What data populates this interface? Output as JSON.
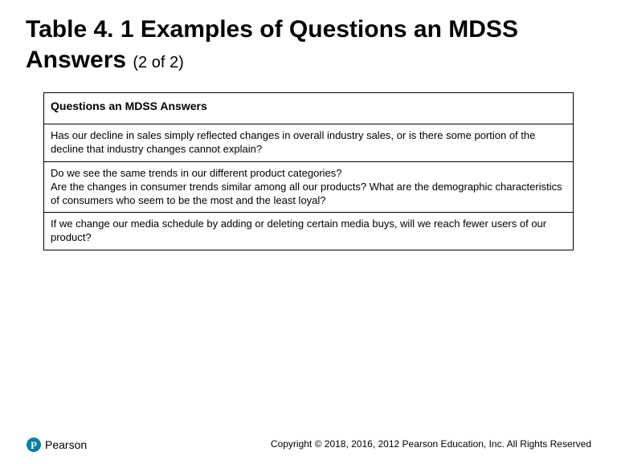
{
  "title_main": "Table 4. 1 Examples of Questions an MDSS Answers ",
  "title_sub": "(2 of 2)",
  "table": {
    "header": "Questions an MDSS Answers",
    "rows": [
      "Has our decline in sales simply reflected changes in overall industry sales, or is there some portion of the decline that industry changes cannot explain?",
      "Do we see the same trends in our different product categories?\nAre the changes in consumer trends similar among all our products? What are the demographic characteristics of consumers who seem to be the most and the least loyal?",
      "If we change our media schedule by adding or deleting certain media buys, will we reach fewer users of our product?"
    ]
  },
  "footer": "Copyright © 2018, 2016, 2012 Pearson Education, Inc. All Rights Reserved",
  "logo_text": "Pearson",
  "colors": {
    "text": "#000000",
    "background": "#ffffff",
    "border": "#000000",
    "logo_p": "#007fa3"
  }
}
